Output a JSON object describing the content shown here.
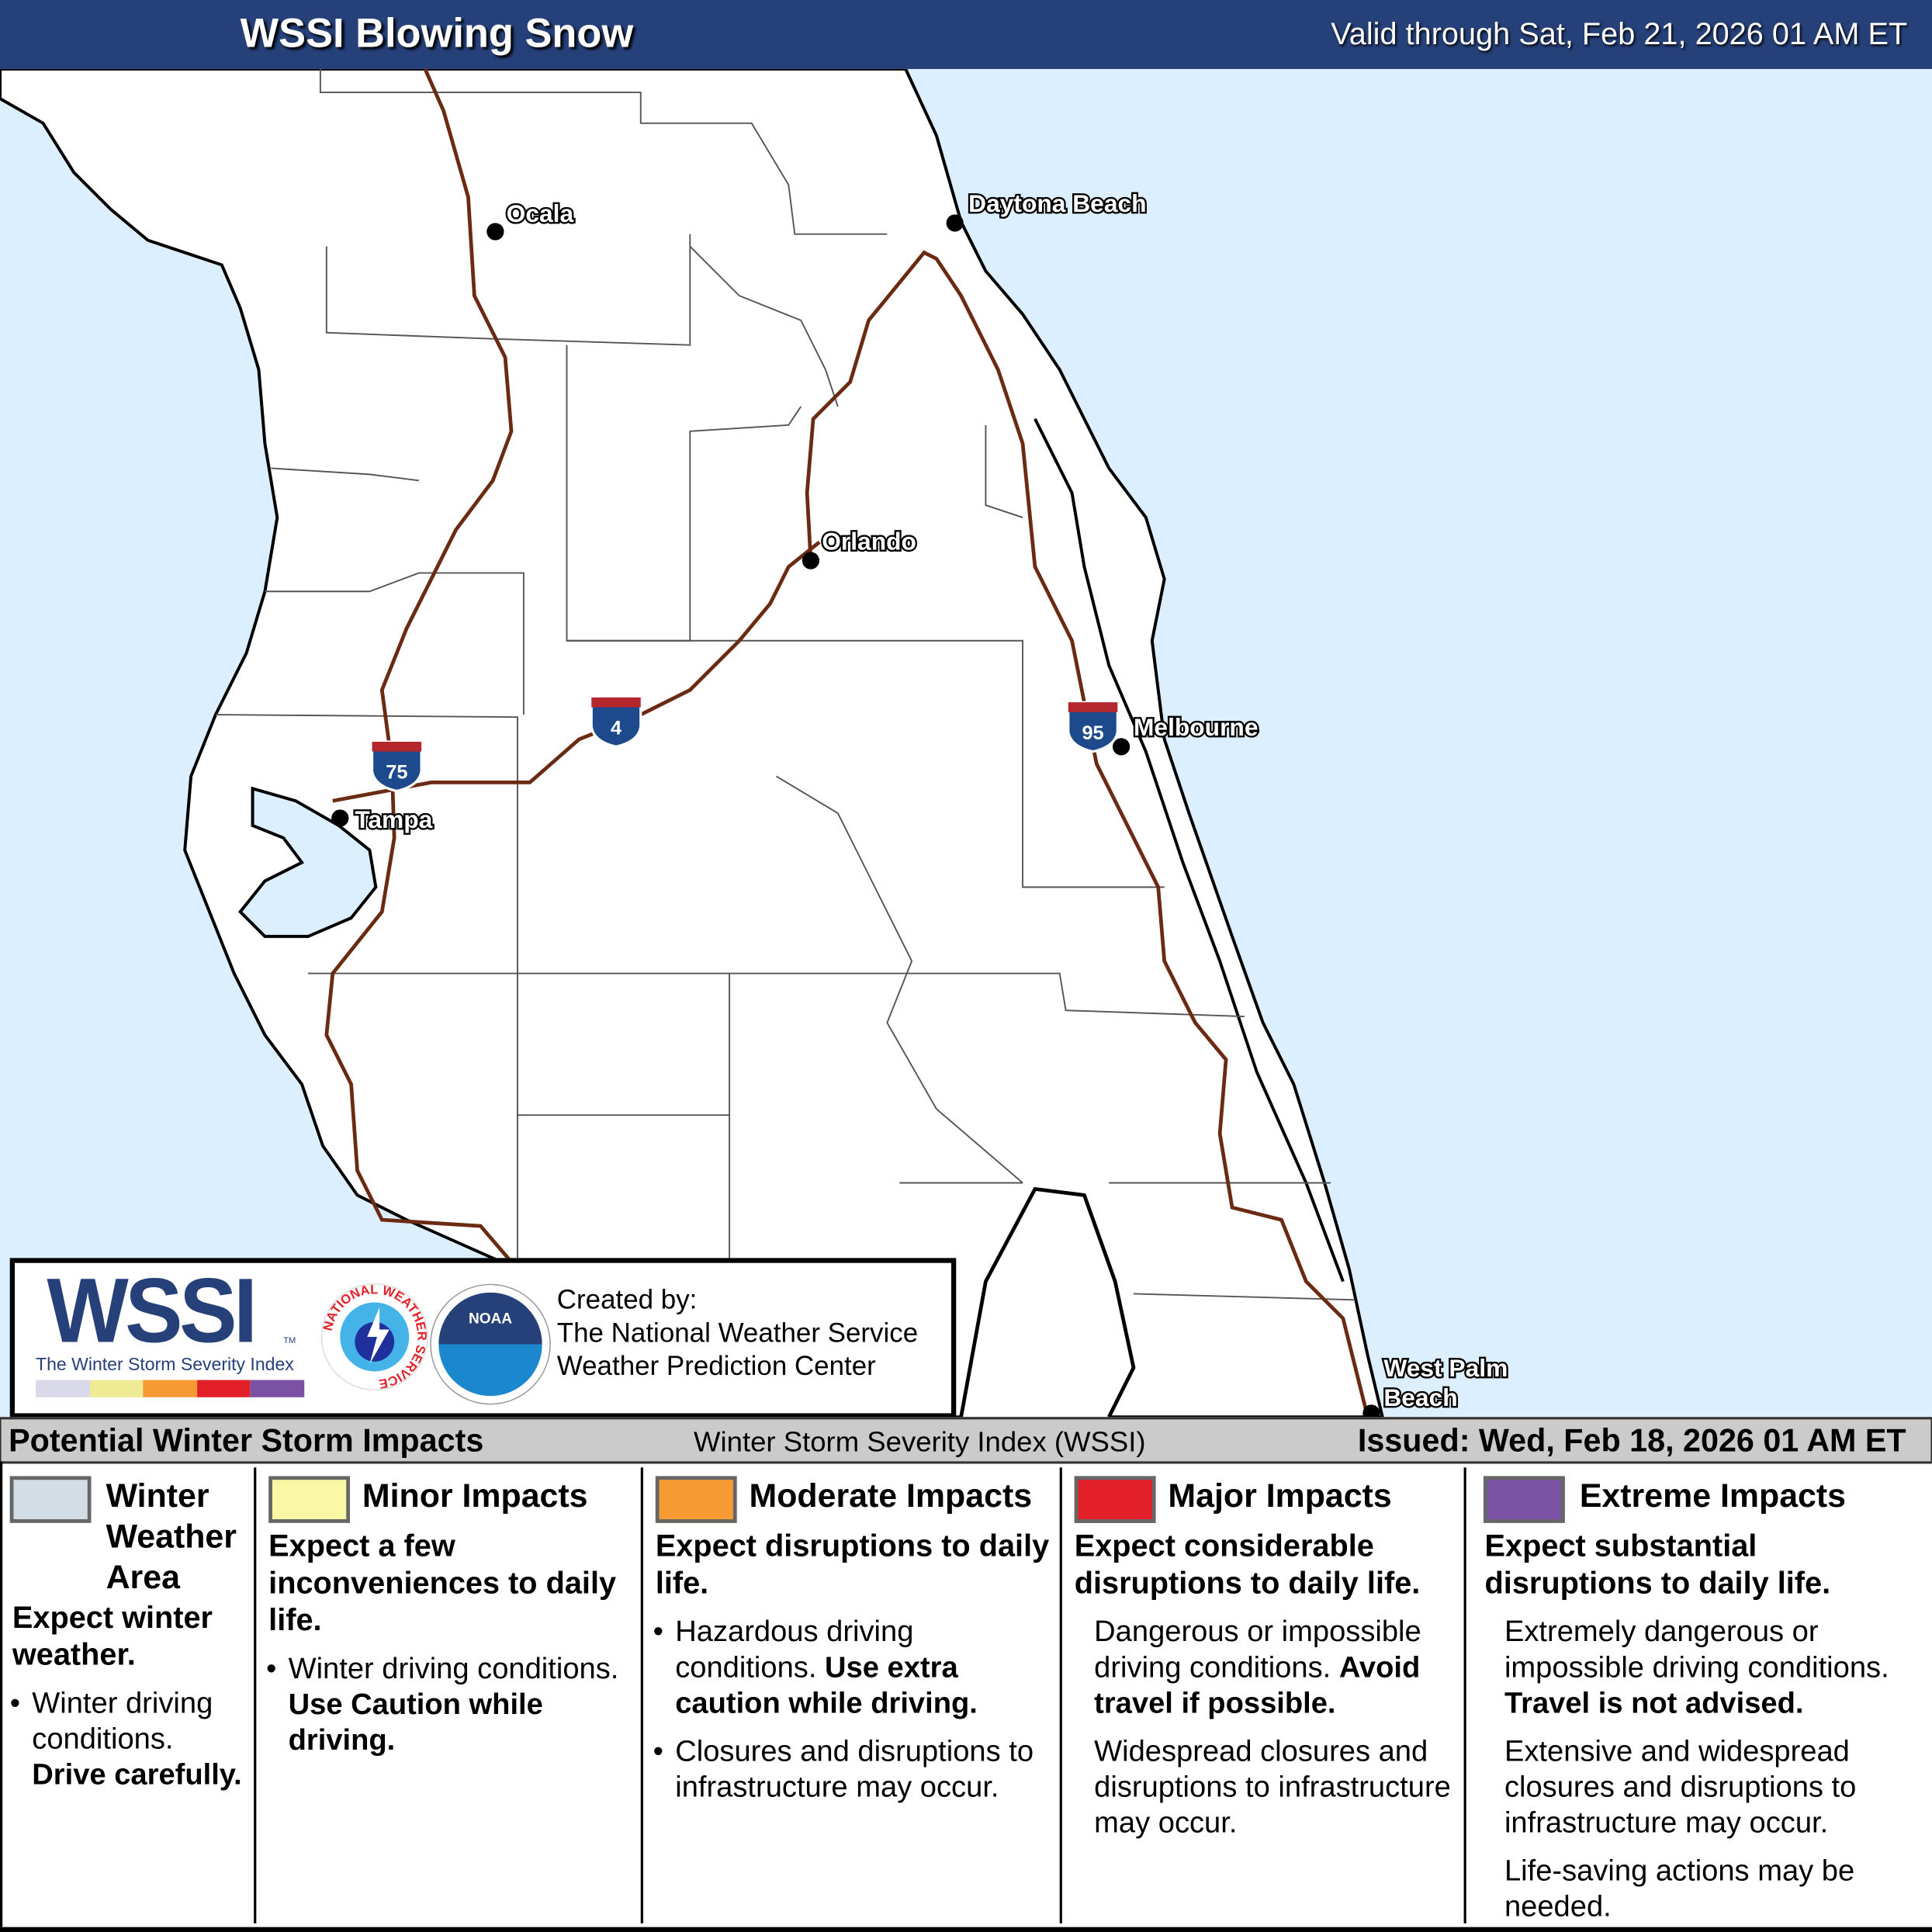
{
  "header": {
    "title": "WSSI Blowing Snow",
    "valid": "Valid through Sat, Feb 21, 2026 01 AM ET"
  },
  "map": {
    "colors": {
      "ocean": "#dcefff",
      "land": "#ffffff",
      "highway": "#6b2a12",
      "header": "#26407a"
    },
    "cities": [
      "Ocala",
      "Daytona Beach",
      "Orlando",
      "Melbourne",
      "Tampa",
      "West Palm",
      "Beach"
    ],
    "highways": [
      "75",
      "4",
      "95"
    ]
  },
  "logo": {
    "wssi": "WSSI",
    "tm": "TM",
    "subtitle": "The Winter Storm Severity Index",
    "nws": "NATIONAL WEATHER SERVICE",
    "noaa": "NOAA",
    "credit_label": "Created by:",
    "credit_1": "The National Weather Service",
    "credit_2": "Weather Prediction Center",
    "bar_colors": [
      "#d9d9ea",
      "#eeeb94",
      "#f79a34",
      "#e3202a",
      "#7b52a3"
    ]
  },
  "legend_bar": {
    "left": "Potential Winter Storm Impacts",
    "middle": "Winter Storm Severity Index (WSSI)",
    "right": "Issued: Wed, Feb 18, 2026 01 AM ET"
  },
  "legend": [
    {
      "color": "#d2dde6",
      "title": [
        "Winter",
        "Weather",
        "Area"
      ],
      "sub": "Expect winter weather.",
      "text": "Winter driving conditions.",
      "bold": "Drive carefully."
    },
    {
      "color": "#fbf8a5",
      "title": "Minor Impacts",
      "sub": "Expect a few inconveniences to daily life.",
      "text": "Winter driving conditions.",
      "bold": "Use Caution while driving."
    },
    {
      "color": "#f79a34",
      "title": "Moderate Impacts",
      "sub": "Expect disruptions to daily life.",
      "text": "Hazardous driving conditions.",
      "bold": "Use extra caution while driving.",
      "text2": "Closures and disruptions to infrastructure may occur."
    },
    {
      "color": "#e3202a",
      "title": "Major Impacts",
      "sub": "Expect considerable disruptions to daily life.",
      "text": "Dangerous or impossible driving conditions.",
      "bold": "Avoid travel if possible.",
      "text2": "Widespread closures and disruptions to infrastructure may occur."
    },
    {
      "color": "#7b52a3",
      "title": "Extreme Impacts",
      "sub": "Expect substantial disruptions to daily life.",
      "text": "Extremely dangerous or impossible driving conditions.",
      "bold": "Travel is not advised.",
      "text2": "Extensive and widespread closures and disruptions to infrastructure may occur.",
      "text3": "Life-saving actions may be needed."
    }
  ]
}
